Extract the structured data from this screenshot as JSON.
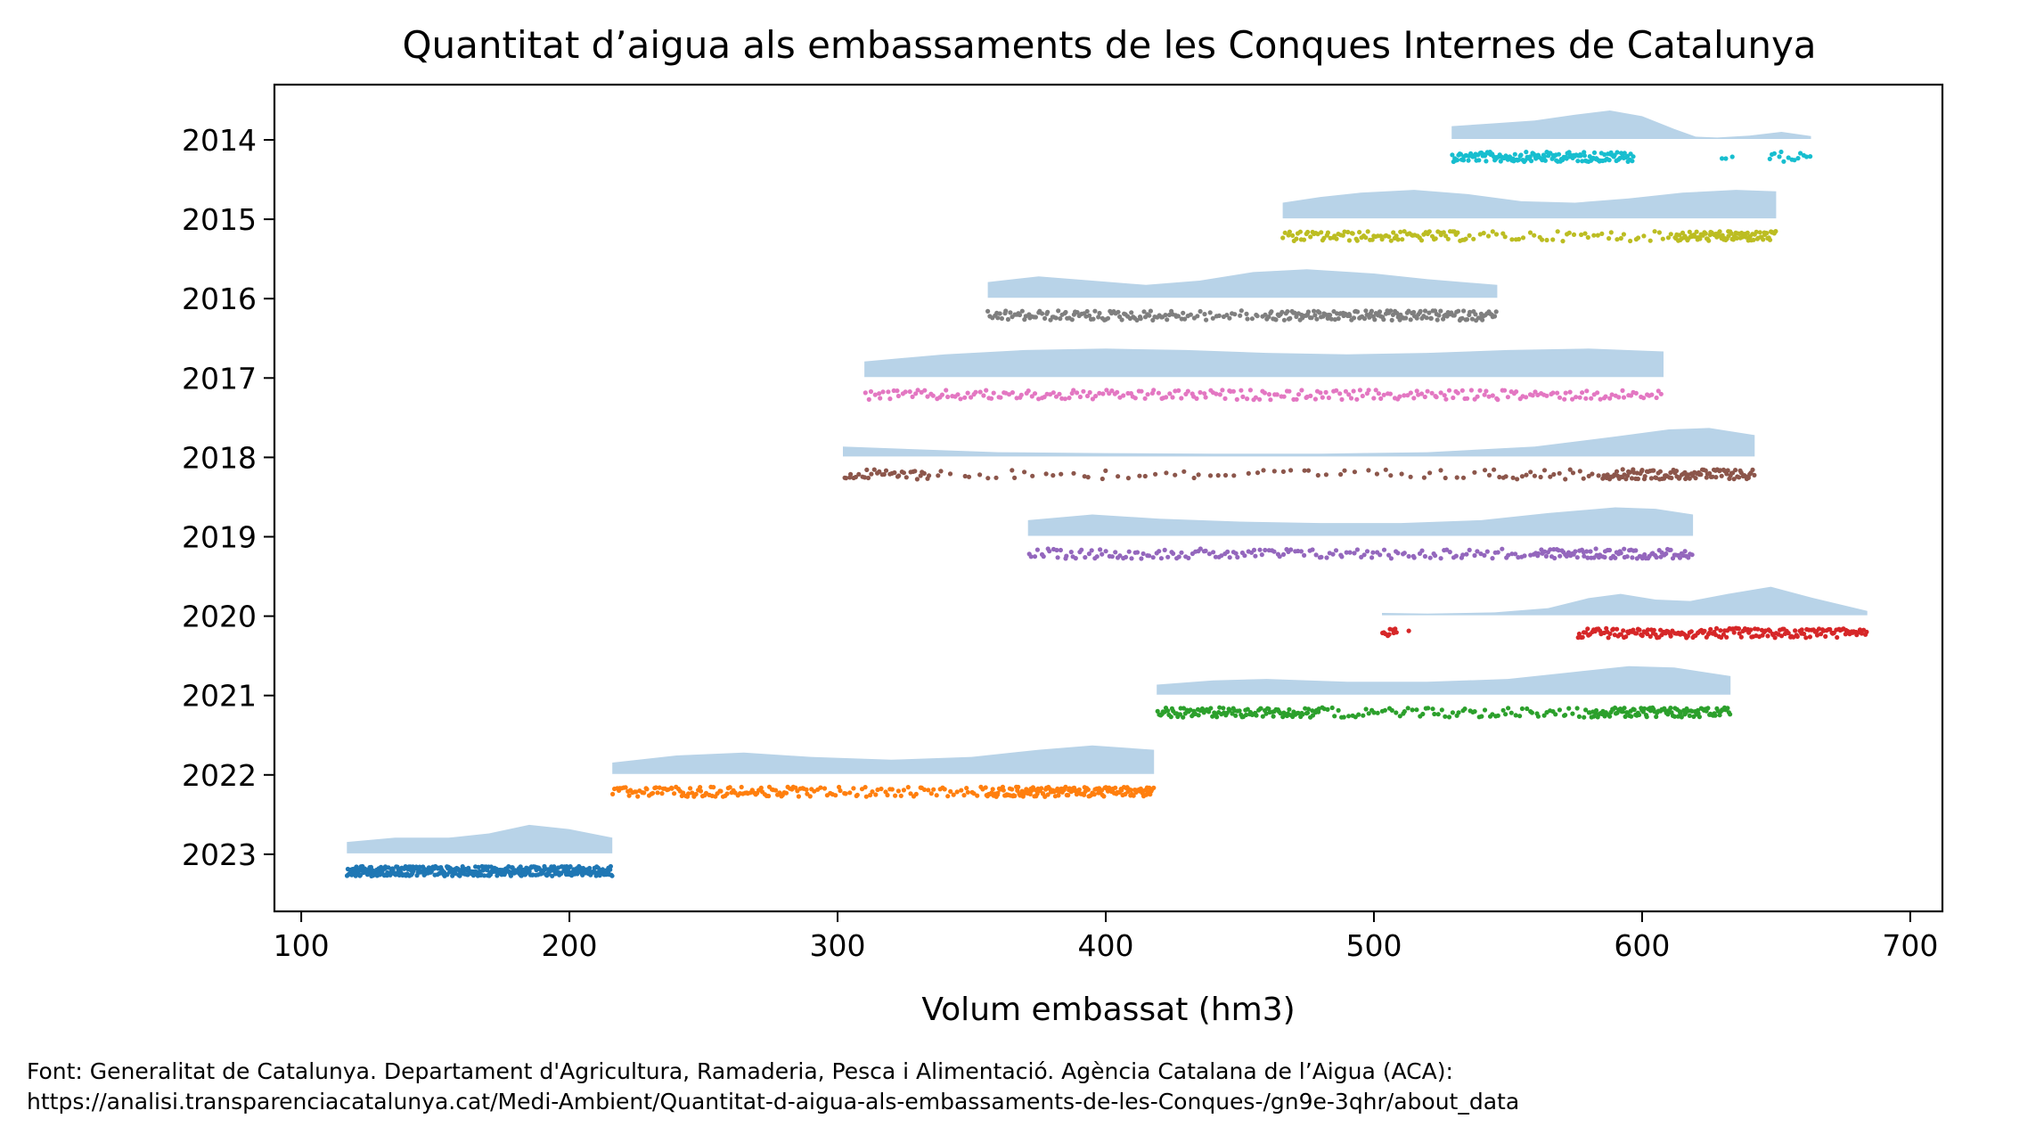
{
  "chart_data": {
    "type": "scatter",
    "subtype": "raincloud",
    "title": "Quantitat d’aigua als embassaments de les Conques Internes de Catalunya",
    "xlabel": "Volum embassat (hm3)",
    "ylabel": "",
    "xlim": [
      90,
      712
    ],
    "xticks": [
      100,
      200,
      300,
      400,
      500,
      600,
      700
    ],
    "grid": false,
    "density_color": "#b8d3e8",
    "series": [
      {
        "name": "2014",
        "color": "#17becf",
        "min": 529,
        "max": 663,
        "clusters": [
          [
            529,
            597,
            150
          ],
          [
            628,
            635,
            3
          ],
          [
            647,
            663,
            14
          ]
        ],
        "density": [
          [
            529,
            0.45
          ],
          [
            545,
            0.55
          ],
          [
            560,
            0.65
          ],
          [
            575,
            0.85
          ],
          [
            588,
            1.0
          ],
          [
            600,
            0.8
          ],
          [
            612,
            0.35
          ],
          [
            620,
            0.08
          ],
          [
            628,
            0.05
          ],
          [
            640,
            0.12
          ],
          [
            652,
            0.25
          ],
          [
            663,
            0.1
          ]
        ]
      },
      {
        "name": "2015",
        "color": "#bcbd22",
        "min": 466,
        "max": 650,
        "clusters": [
          [
            466,
            535,
            90
          ],
          [
            535,
            612,
            45
          ],
          [
            612,
            650,
            90
          ]
        ],
        "density": [
          [
            466,
            0.55
          ],
          [
            480,
            0.75
          ],
          [
            495,
            0.9
          ],
          [
            515,
            1.0
          ],
          [
            535,
            0.85
          ],
          [
            555,
            0.6
          ],
          [
            575,
            0.55
          ],
          [
            595,
            0.7
          ],
          [
            615,
            0.9
          ],
          [
            635,
            1.0
          ],
          [
            650,
            0.95
          ]
        ]
      },
      {
        "name": "2016",
        "color": "#7f7f7f",
        "min": 356,
        "max": 546,
        "clusters": [
          [
            356,
            430,
            100
          ],
          [
            430,
            460,
            25
          ],
          [
            460,
            546,
            150
          ]
        ],
        "density": [
          [
            356,
            0.55
          ],
          [
            375,
            0.75
          ],
          [
            395,
            0.6
          ],
          [
            415,
            0.45
          ],
          [
            435,
            0.6
          ],
          [
            455,
            0.9
          ],
          [
            475,
            1.0
          ],
          [
            500,
            0.85
          ],
          [
            520,
            0.65
          ],
          [
            546,
            0.45
          ]
        ]
      },
      {
        "name": "2017",
        "color": "#e377c2",
        "min": 310,
        "max": 608,
        "clusters": [
          [
            310,
            608,
            260
          ]
        ],
        "density": [
          [
            310,
            0.55
          ],
          [
            340,
            0.8
          ],
          [
            370,
            0.95
          ],
          [
            400,
            1.0
          ],
          [
            430,
            0.95
          ],
          [
            460,
            0.85
          ],
          [
            490,
            0.8
          ],
          [
            520,
            0.85
          ],
          [
            550,
            0.95
          ],
          [
            580,
            1.0
          ],
          [
            608,
            0.9
          ]
        ]
      },
      {
        "name": "2018",
        "color": "#8c564b",
        "min": 302,
        "max": 642,
        "clusters": [
          [
            302,
            335,
            35
          ],
          [
            335,
            540,
            60
          ],
          [
            540,
            585,
            25
          ],
          [
            585,
            642,
            110
          ]
        ],
        "density": [
          [
            302,
            0.35
          ],
          [
            330,
            0.25
          ],
          [
            360,
            0.15
          ],
          [
            400,
            0.12
          ],
          [
            440,
            0.1
          ],
          [
            480,
            0.1
          ],
          [
            520,
            0.15
          ],
          [
            560,
            0.35
          ],
          [
            590,
            0.7
          ],
          [
            610,
            0.95
          ],
          [
            625,
            1.0
          ],
          [
            642,
            0.75
          ]
        ]
      },
      {
        "name": "2019",
        "color": "#9467bd",
        "min": 371,
        "max": 619,
        "clusters": [
          [
            371,
            470,
            90
          ],
          [
            470,
            560,
            70
          ],
          [
            560,
            619,
            90
          ]
        ],
        "density": [
          [
            371,
            0.55
          ],
          [
            395,
            0.75
          ],
          [
            420,
            0.6
          ],
          [
            450,
            0.5
          ],
          [
            480,
            0.45
          ],
          [
            510,
            0.45
          ],
          [
            540,
            0.55
          ],
          [
            565,
            0.8
          ],
          [
            590,
            1.0
          ],
          [
            605,
            0.95
          ],
          [
            619,
            0.75
          ]
        ]
      },
      {
        "name": "2020",
        "color": "#d62728",
        "min": 503,
        "max": 684,
        "clusters": [
          [
            503,
            509,
            10
          ],
          [
            513,
            514,
            1
          ],
          [
            576,
            684,
            190
          ]
        ],
        "density": [
          [
            503,
            0.08
          ],
          [
            520,
            0.06
          ],
          [
            545,
            0.1
          ],
          [
            565,
            0.25
          ],
          [
            580,
            0.6
          ],
          [
            592,
            0.75
          ],
          [
            605,
            0.55
          ],
          [
            618,
            0.5
          ],
          [
            632,
            0.75
          ],
          [
            648,
            1.0
          ],
          [
            664,
            0.6
          ],
          [
            684,
            0.15
          ]
        ]
      },
      {
        "name": "2021",
        "color": "#2ca02c",
        "min": 419,
        "max": 633,
        "clusters": [
          [
            419,
            480,
            110
          ],
          [
            480,
            580,
            80
          ],
          [
            580,
            633,
            110
          ]
        ],
        "density": [
          [
            419,
            0.35
          ],
          [
            440,
            0.5
          ],
          [
            460,
            0.55
          ],
          [
            490,
            0.45
          ],
          [
            520,
            0.45
          ],
          [
            550,
            0.55
          ],
          [
            575,
            0.8
          ],
          [
            595,
            1.0
          ],
          [
            612,
            0.95
          ],
          [
            633,
            0.65
          ]
        ]
      },
      {
        "name": "2022",
        "color": "#ff7f0e",
        "min": 216,
        "max": 418,
        "clusters": [
          [
            216,
            290,
            110
          ],
          [
            290,
            355,
            60
          ],
          [
            355,
            418,
            160
          ]
        ],
        "density": [
          [
            216,
            0.4
          ],
          [
            240,
            0.65
          ],
          [
            265,
            0.75
          ],
          [
            290,
            0.6
          ],
          [
            320,
            0.5
          ],
          [
            350,
            0.6
          ],
          [
            375,
            0.85
          ],
          [
            395,
            1.0
          ],
          [
            418,
            0.85
          ]
        ]
      },
      {
        "name": "2023",
        "color": "#1f77b4",
        "min": 117,
        "max": 216,
        "clusters": [
          [
            117,
            216,
            400
          ]
        ],
        "density": [
          [
            117,
            0.4
          ],
          [
            135,
            0.55
          ],
          [
            155,
            0.55
          ],
          [
            170,
            0.7
          ],
          [
            185,
            1.0
          ],
          [
            200,
            0.85
          ],
          [
            216,
            0.55
          ]
        ]
      }
    ],
    "footnote": [
      "Font: Generalitat de Catalunya. Departament d'Agricultura, Ramaderia, Pesca i Alimentació. Agència Catalana de l’Aigua (ACA):",
      "https://analisi.transparenciacatalunya.cat/Medi-Ambient/Quantitat-d-aigua-als-embassaments-de-les-Conques-/gn9e-3qhr/about_data"
    ]
  }
}
